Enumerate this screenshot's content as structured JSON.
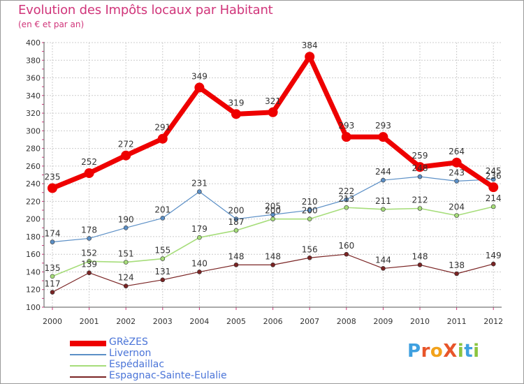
{
  "title": "Evolution des Impôts locaux par Habitant",
  "subtitle": "(en € et par an)",
  "logo": {
    "text": "ProXiti",
    "letters": [
      "P",
      "r",
      "o",
      "X",
      "i",
      "t",
      "i"
    ],
    "colors": [
      "#3fa0e0",
      "#e8552a",
      "#f2a21b",
      "#e8552a",
      "#8bc43f",
      "#3fa0e0",
      "#8bc43f"
    ]
  },
  "chart_data": {
    "type": "line",
    "title": "Evolution des Impôts locaux par Habitant",
    "ylabel": "(en € et par an)",
    "xlabel": "",
    "ylim": [
      100,
      400
    ],
    "yticks": [
      100,
      120,
      140,
      160,
      180,
      200,
      220,
      240,
      260,
      280,
      300,
      320,
      340,
      360,
      380,
      400
    ],
    "grid": true,
    "categories": [
      "2000",
      "2001",
      "2002",
      "2003",
      "2004",
      "2005",
      "2006",
      "2007",
      "2008",
      "2009",
      "2010",
      "2011",
      "2012"
    ],
    "series": [
      {
        "name": "GRèZES",
        "color": "#ee0000",
        "width": 7,
        "marker": 7,
        "values": [
          235,
          252,
          272,
          291,
          349,
          319,
          321,
          384,
          293,
          293,
          259,
          264,
          236
        ],
        "labels": [
          "235",
          "252",
          "272",
          "291",
          "349",
          "319",
          "321",
          "384",
          "293",
          "293",
          "259",
          "264",
          "236"
        ]
      },
      {
        "name": "Livernon",
        "color": "#5b8fc6",
        "width": 1.2,
        "marker": 3,
        "values": [
          174,
          178,
          190,
          201,
          231,
          200,
          205,
          210,
          222,
          244,
          248,
          243,
          245
        ],
        "labels": [
          "174",
          "178",
          "190",
          "201",
          "231",
          "200",
          "205",
          "210",
          "222",
          "244",
          "248",
          "243",
          "245"
        ]
      },
      {
        "name": "Espédaillac",
        "color": "#a6dd7a",
        "width": 1.6,
        "marker": 3,
        "values": [
          135,
          152,
          151,
          155,
          179,
          187,
          200,
          200,
          213,
          211,
          212,
          204,
          214
        ],
        "labels": [
          "135",
          "152",
          "151",
          "155",
          "179",
          "187",
          "200",
          "200",
          "213",
          "211",
          "212",
          "204",
          "214"
        ]
      },
      {
        "name": "Espagnac-Sainte-Eulalie",
        "color": "#7a2424",
        "width": 1.2,
        "marker": 3,
        "values": [
          117,
          139,
          124,
          131,
          140,
          148,
          148,
          156,
          160,
          144,
          148,
          138,
          149
        ],
        "labels": [
          "117",
          "139",
          "124",
          "131",
          "140",
          "148",
          "148",
          "156",
          "160",
          "144",
          "148",
          "138",
          "149"
        ]
      }
    ]
  }
}
